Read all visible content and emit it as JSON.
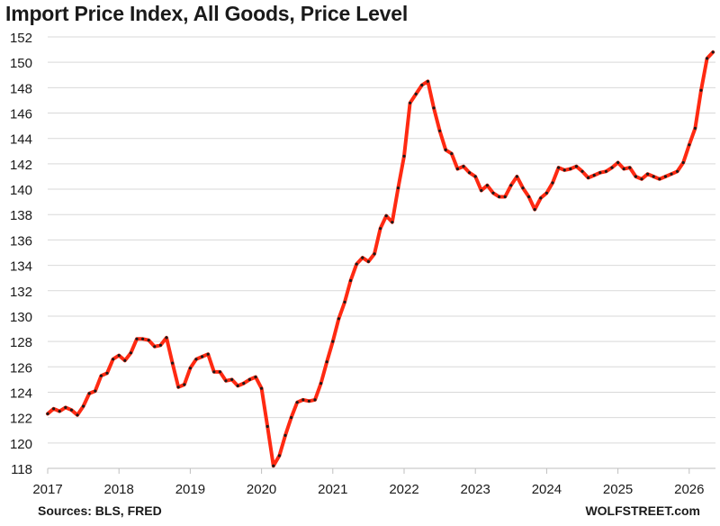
{
  "header": {
    "title": "Import Price Index, All Goods, Price Level"
  },
  "footer": {
    "source": "Sources: BLS, FRED",
    "brand": "WOLFSTREET.com"
  },
  "colors": {
    "line": "#ff2a12",
    "marker": "#1a1a1a",
    "grid": "#d9d9d9",
    "axis": "#bfbfbf",
    "text": "#1a1a1a"
  },
  "chart_data": {
    "type": "line",
    "title": "Import Price Index, All Goods, Price Level",
    "xlabel": "",
    "ylabel": "",
    "ylim": [
      118,
      152
    ],
    "yticks": [
      118,
      120,
      122,
      124,
      126,
      128,
      130,
      132,
      134,
      136,
      138,
      140,
      142,
      144,
      146,
      148,
      150,
      152
    ],
    "xticks": [
      "2017",
      "2018",
      "2019",
      "2020",
      "2021",
      "2022",
      "2023",
      "2024",
      "2025",
      "2026"
    ],
    "start": "2017-01",
    "frequency": "monthly",
    "grid": true,
    "legend": "none",
    "series": [
      {
        "values": [
          122.3,
          122.7,
          122.5,
          122.8,
          122.6,
          122.2,
          122.9,
          123.9,
          124.1,
          125.3,
          125.5,
          126.6,
          126.9,
          126.5,
          127.1,
          128.2,
          128.2,
          128.1,
          127.6,
          127.7,
          128.3,
          126.3,
          124.4,
          124.6,
          125.9,
          126.6,
          126.8,
          127.0,
          125.6,
          125.6,
          124.9,
          125.0,
          124.5,
          124.7,
          125.0,
          125.2,
          124.3,
          121.3,
          118.2,
          119.0,
          120.6,
          122.0,
          123.2,
          123.4,
          123.3,
          123.4,
          124.7,
          126.4,
          128.0,
          129.8,
          131.1,
          132.8,
          134.1,
          134.6,
          134.3,
          134.9,
          136.9,
          137.9,
          137.4,
          140.1,
          142.6,
          146.8,
          147.5,
          148.2,
          148.5,
          146.4,
          144.6,
          143.1,
          142.8,
          141.6,
          141.8,
          141.3,
          141.0,
          139.9,
          140.3,
          139.7,
          139.4,
          139.4,
          140.3,
          141.0,
          140.1,
          139.4,
          138.4,
          139.3,
          139.7,
          140.5,
          141.7,
          141.5,
          141.6,
          141.8,
          141.4,
          140.9,
          141.1,
          141.3,
          141.4,
          141.7,
          142.1,
          141.6,
          141.7,
          141.0,
          140.8,
          141.2,
          141.0,
          140.8,
          141.0,
          141.2,
          141.4,
          142.1,
          143.5,
          144.8,
          147.8,
          150.3,
          150.8
        ]
      }
    ]
  }
}
